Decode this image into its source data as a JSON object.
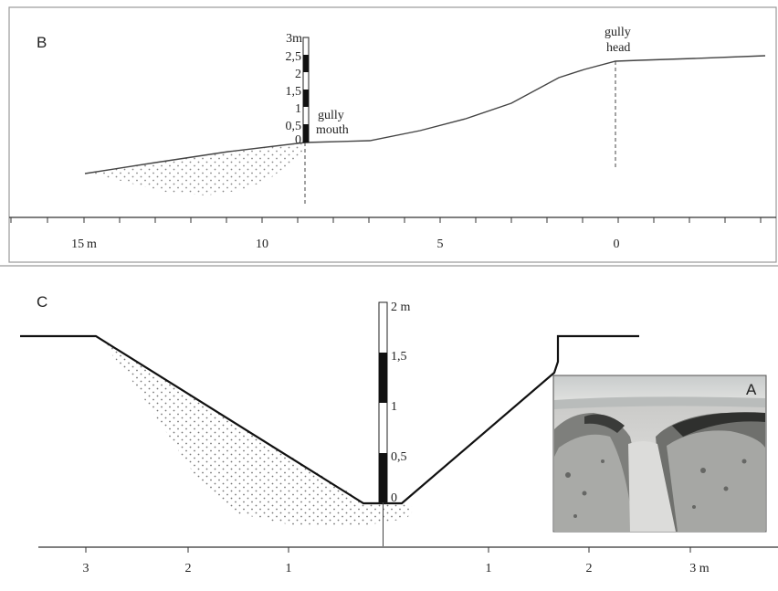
{
  "panels": {
    "B": {
      "letter": "B",
      "rod_labels": [
        "3m",
        "2,5",
        "2",
        "1,5",
        "1",
        "0,5",
        "0"
      ],
      "mouth_label_1": "gully",
      "mouth_label_2": "mouth",
      "head_label_1": "gully",
      "head_label_2": "head",
      "axis_ticks": [
        "15 m",
        "10",
        "5",
        "0"
      ]
    },
    "C": {
      "letter": "C",
      "rod_labels": [
        "2 m",
        "1,5",
        "1",
        "0,5",
        "0"
      ],
      "axis_ticks": [
        "3",
        "2",
        "1",
        "1",
        "2",
        "3  m"
      ]
    },
    "A": {
      "letter": "A"
    }
  },
  "colors": {
    "line": "#333333",
    "frame": "#9a9a9a",
    "rod_dark": "#111111",
    "sand_dots": "#666666"
  }
}
